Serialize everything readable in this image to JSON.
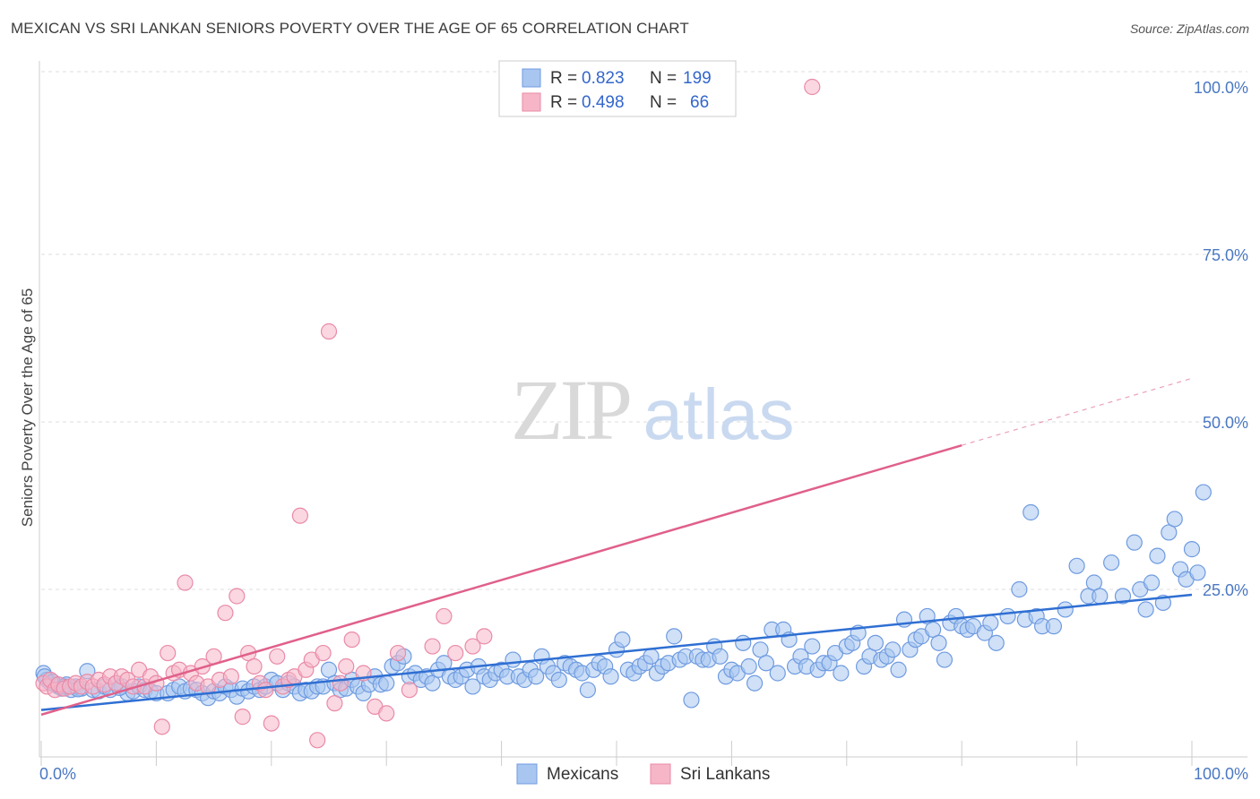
{
  "title": "MEXICAN VS SRI LANKAN SENIORS POVERTY OVER THE AGE OF 65 CORRELATION CHART",
  "source": "Source: ZipAtlas.com",
  "watermark": {
    "zip": "ZIP",
    "atlas": "atlas"
  },
  "legend": {
    "r_label": "R =",
    "n_label": "N =",
    "rows": [
      {
        "r": "0.823",
        "n": "199",
        "color": "#a8c6f0"
      },
      {
        "r": "0.498",
        "n": "66",
        "color": "#f6b6c8"
      }
    ]
  },
  "chart_data": {
    "type": "scatter",
    "ylabel": "Seniors Poverty Over the Age of 65",
    "xlim": [
      0,
      100
    ],
    "ylim": [
      0,
      100
    ],
    "x_tick_labels": [
      "0.0%",
      "100.0%"
    ],
    "y_ticks": [
      {
        "value": 100,
        "label": "100.0%"
      },
      {
        "value": 75,
        "label": "75.0%"
      },
      {
        "value": 50,
        "label": "50.0%"
      },
      {
        "value": 25,
        "label": "25.0%"
      }
    ],
    "grid": true,
    "legend_position": "top-center",
    "series": [
      {
        "name": "Mexicans",
        "color": "#a8c6f0",
        "stroke": "#6f9be0",
        "trend_color": "#2f6fd3",
        "trend": {
          "x0": 0,
          "y0": 7,
          "x1": 100,
          "y1": 24.2
        },
        "points": [
          [
            0.2,
            12.5
          ],
          [
            0.5,
            11.5
          ],
          [
            0.8,
            11
          ],
          [
            1.2,
            10.8
          ],
          [
            1.5,
            10.5
          ],
          [
            1.8,
            10.2
          ],
          [
            2.2,
            10.8
          ],
          [
            2.6,
            10
          ],
          [
            3,
            10.5
          ],
          [
            3.5,
            10.2
          ],
          [
            4,
            12.8
          ],
          [
            4.5,
            10
          ],
          [
            5,
            9.8
          ],
          [
            5.5,
            10.5
          ],
          [
            6,
            10
          ],
          [
            6.5,
            11
          ],
          [
            7,
            10.5
          ],
          [
            7.5,
            9.5
          ],
          [
            8,
            9.8
          ],
          [
            8.5,
            10.5
          ],
          [
            9,
            10
          ],
          [
            9.5,
            9.8
          ],
          [
            10,
            9.5
          ],
          [
            11,
            9.5
          ],
          [
            11.5,
            10
          ],
          [
            12,
            10.5
          ],
          [
            12.5,
            9.8
          ],
          [
            13,
            10.2
          ],
          [
            13.5,
            10
          ],
          [
            14,
            9.5
          ],
          [
            14.5,
            8.8
          ],
          [
            15,
            9.8
          ],
          [
            15.5,
            9.5
          ],
          [
            16,
            10.5
          ],
          [
            16.5,
            10
          ],
          [
            17,
            9
          ],
          [
            17.5,
            10.2
          ],
          [
            18,
            9.8
          ],
          [
            18.5,
            10.5
          ],
          [
            19,
            10
          ],
          [
            19.5,
            10.5
          ],
          [
            20,
            11.5
          ],
          [
            20.5,
            11
          ],
          [
            21,
            10
          ],
          [
            21.5,
            11
          ],
          [
            22,
            10.5
          ],
          [
            22.5,
            9.5
          ],
          [
            23,
            10
          ],
          [
            23.5,
            9.8
          ],
          [
            24,
            10.5
          ],
          [
            24.5,
            10.5
          ],
          [
            25,
            13
          ],
          [
            25.5,
            11
          ],
          [
            26,
            10
          ],
          [
            26.5,
            10.2
          ],
          [
            27,
            11.5
          ],
          [
            27.5,
            10.5
          ],
          [
            28,
            9.5
          ],
          [
            28.5,
            10.8
          ],
          [
            29,
            12
          ],
          [
            29.5,
            10.8
          ],
          [
            30,
            11
          ],
          [
            30.5,
            13.5
          ],
          [
            31,
            14
          ],
          [
            31.5,
            15
          ],
          [
            32,
            12
          ],
          [
            32.5,
            12.5
          ],
          [
            33,
            11.5
          ],
          [
            33.5,
            12
          ],
          [
            34,
            11
          ],
          [
            34.5,
            13
          ],
          [
            35,
            14
          ],
          [
            35.5,
            12
          ],
          [
            36,
            11.5
          ],
          [
            36.5,
            12
          ],
          [
            37,
            13
          ],
          [
            37.5,
            10.5
          ],
          [
            38,
            13.5
          ],
          [
            38.5,
            12
          ],
          [
            39,
            11.5
          ],
          [
            39.5,
            12.5
          ],
          [
            40,
            13
          ],
          [
            40.5,
            12
          ],
          [
            41,
            14.5
          ],
          [
            41.5,
            12
          ],
          [
            42,
            11.5
          ],
          [
            42.5,
            13
          ],
          [
            43,
            12
          ],
          [
            43.5,
            15
          ],
          [
            44,
            13.5
          ],
          [
            44.5,
            12.5
          ],
          [
            45,
            11.5
          ],
          [
            45.5,
            14
          ],
          [
            46,
            13.5
          ],
          [
            46.5,
            13
          ],
          [
            47,
            12.5
          ],
          [
            47.5,
            10
          ],
          [
            48,
            13
          ],
          [
            48.5,
            14
          ],
          [
            49,
            13.5
          ],
          [
            49.5,
            12
          ],
          [
            50,
            16
          ],
          [
            50.5,
            17.5
          ],
          [
            51,
            13
          ],
          [
            51.5,
            12.5
          ],
          [
            52,
            13.5
          ],
          [
            52.5,
            14
          ],
          [
            53,
            15
          ],
          [
            53.5,
            12.5
          ],
          [
            54,
            13.5
          ],
          [
            54.5,
            14
          ],
          [
            55,
            18
          ],
          [
            55.5,
            14.5
          ],
          [
            56,
            15
          ],
          [
            56.5,
            8.5
          ],
          [
            57,
            15
          ],
          [
            57.5,
            14.5
          ],
          [
            58,
            14.5
          ],
          [
            58.5,
            16.5
          ],
          [
            59,
            15
          ],
          [
            59.5,
            12
          ],
          [
            60,
            13
          ],
          [
            60.5,
            12.5
          ],
          [
            61,
            17
          ],
          [
            61.5,
            13.5
          ],
          [
            62,
            11
          ],
          [
            62.5,
            16
          ],
          [
            63,
            14
          ],
          [
            63.5,
            19
          ],
          [
            64,
            12.5
          ],
          [
            64.5,
            19
          ],
          [
            65,
            17.5
          ],
          [
            65.5,
            13.5
          ],
          [
            66,
            15
          ],
          [
            66.5,
            13.5
          ],
          [
            67,
            16.5
          ],
          [
            67.5,
            13
          ],
          [
            68,
            14
          ],
          [
            68.5,
            14
          ],
          [
            69,
            15.5
          ],
          [
            69.5,
            12.5
          ],
          [
            70,
            16.5
          ],
          [
            70.5,
            17
          ],
          [
            71,
            18.5
          ],
          [
            71.5,
            13.5
          ],
          [
            72,
            15
          ],
          [
            72.5,
            17
          ],
          [
            73,
            14.5
          ],
          [
            73.5,
            15
          ],
          [
            74,
            16
          ],
          [
            74.5,
            13
          ],
          [
            75,
            20.5
          ],
          [
            75.5,
            16
          ],
          [
            76,
            17.5
          ],
          [
            76.5,
            18
          ],
          [
            77,
            21
          ],
          [
            77.5,
            19
          ],
          [
            78,
            17
          ],
          [
            78.5,
            14.5
          ],
          [
            79,
            20
          ],
          [
            79.5,
            21
          ],
          [
            80,
            19.5
          ],
          [
            80.5,
            19
          ],
          [
            81,
            19.5
          ],
          [
            82,
            18.5
          ],
          [
            82.5,
            20
          ],
          [
            83,
            17
          ],
          [
            84,
            21
          ],
          [
            85,
            25
          ],
          [
            85.5,
            20.5
          ],
          [
            86,
            36.5
          ],
          [
            86.5,
            21
          ],
          [
            87,
            19.5
          ],
          [
            88,
            19.5
          ],
          [
            89,
            22
          ],
          [
            90,
            28.5
          ],
          [
            91,
            24
          ],
          [
            91.5,
            26
          ],
          [
            92,
            24
          ],
          [
            93,
            29
          ],
          [
            94,
            24
          ],
          [
            95,
            32
          ],
          [
            95.5,
            25
          ],
          [
            96,
            22
          ],
          [
            96.5,
            26
          ],
          [
            97,
            30
          ],
          [
            97.5,
            23
          ],
          [
            98,
            33.5
          ],
          [
            98.5,
            35.5
          ],
          [
            99,
            28
          ],
          [
            99.5,
            26.5
          ],
          [
            100,
            31
          ],
          [
            100.5,
            27.5
          ],
          [
            101,
            39.5
          ],
          [
            0.3,
            12
          ],
          [
            1,
            11.2
          ],
          [
            2,
            10.5
          ],
          [
            3.2,
            10.1
          ],
          [
            6.8,
            10.3
          ]
        ]
      },
      {
        "name": "Sri Lankans",
        "color": "#f6b6c8",
        "stroke": "#ea8aa7",
        "trend_color": "#e0608a",
        "trend": {
          "x0": 0,
          "y0": 6.3,
          "x1": 80,
          "y1": 46.5
        },
        "trend_dashed_to": {
          "x": 100,
          "y": 56.5
        },
        "points": [
          [
            0.2,
            11
          ],
          [
            0.5,
            10.5
          ],
          [
            0.8,
            11.5
          ],
          [
            1.2,
            10
          ],
          [
            1.5,
            10.8
          ],
          [
            2,
            10.2
          ],
          [
            2.5,
            10.5
          ],
          [
            3,
            11
          ],
          [
            3.5,
            10.5
          ],
          [
            4,
            11.2
          ],
          [
            4.5,
            10.5
          ],
          [
            5,
            11.5
          ],
          [
            5.5,
            10.8
          ],
          [
            6,
            12
          ],
          [
            6.5,
            11
          ],
          [
            7,
            12
          ],
          [
            7.5,
            11.5
          ],
          [
            8,
            10.5
          ],
          [
            8.5,
            13
          ],
          [
            9,
            10.5
          ],
          [
            9.5,
            12
          ],
          [
            10,
            11
          ],
          [
            10.5,
            4.5
          ],
          [
            11,
            15.5
          ],
          [
            11.5,
            12.5
          ],
          [
            12,
            13
          ],
          [
            12.5,
            26
          ],
          [
            13,
            12.5
          ],
          [
            13.5,
            11
          ],
          [
            14,
            13.5
          ],
          [
            14.5,
            10.5
          ],
          [
            15,
            15
          ],
          [
            15.5,
            11.5
          ],
          [
            16,
            21.5
          ],
          [
            16.5,
            12
          ],
          [
            17,
            24
          ],
          [
            17.5,
            6
          ],
          [
            18,
            15.5
          ],
          [
            18.5,
            13.5
          ],
          [
            19,
            11
          ],
          [
            19.5,
            10
          ],
          [
            20,
            5
          ],
          [
            20.5,
            15
          ],
          [
            21,
            10.5
          ],
          [
            21.5,
            11.5
          ],
          [
            22,
            12
          ],
          [
            22.5,
            36
          ],
          [
            23,
            13
          ],
          [
            23.5,
            14.5
          ],
          [
            24,
            2.5
          ],
          [
            24.5,
            15.5
          ],
          [
            25,
            63.5
          ],
          [
            25.5,
            8
          ],
          [
            26,
            11
          ],
          [
            26.5,
            13.5
          ],
          [
            27,
            17.5
          ],
          [
            28,
            12.5
          ],
          [
            29,
            7.5
          ],
          [
            30,
            6.5
          ],
          [
            31,
            15.5
          ],
          [
            32,
            10
          ],
          [
            34,
            16.5
          ],
          [
            35,
            21
          ],
          [
            36,
            15.5
          ],
          [
            37.5,
            16.5
          ],
          [
            38.5,
            18
          ]
        ],
        "extra_points": [
          [
            67,
            100
          ]
        ]
      }
    ]
  },
  "bottom_legend": [
    {
      "label": "Mexicans",
      "color": "#a8c6f0"
    },
    {
      "label": "Sri Lankans",
      "color": "#f6b6c8"
    }
  ]
}
